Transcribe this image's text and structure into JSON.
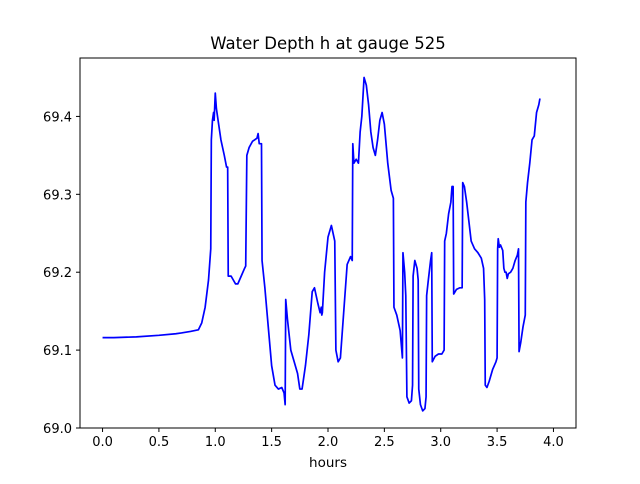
{
  "chart_data": {
    "type": "line",
    "title": "Water Depth h at gauge 525",
    "xlabel": "hours",
    "ylabel": "",
    "xlim": [
      -0.2,
      4.2
    ],
    "ylim": [
      69.0,
      69.475
    ],
    "xticks": [
      0.0,
      0.5,
      1.0,
      1.5,
      2.0,
      2.5,
      3.0,
      3.5,
      4.0
    ],
    "xtick_labels": [
      "0.0",
      "0.5",
      "1.0",
      "1.5",
      "2.0",
      "2.5",
      "3.0",
      "3.5",
      "4.0"
    ],
    "yticks": [
      69.0,
      69.1,
      69.2,
      69.3,
      69.4
    ],
    "ytick_labels": [
      "69.0",
      "69.1",
      "69.2",
      "69.3",
      "69.4"
    ],
    "grid": false,
    "colors": {
      "line": "#0000ff",
      "axes": "#000000",
      "background": "#ffffff"
    },
    "series": [
      {
        "name": "",
        "points": [
          [
            0.0,
            69.116
          ],
          [
            0.1,
            69.116
          ],
          [
            0.3,
            69.117
          ],
          [
            0.5,
            69.119
          ],
          [
            0.65,
            69.121
          ],
          [
            0.7,
            69.122
          ],
          [
            0.78,
            69.124
          ],
          [
            0.85,
            69.126
          ],
          [
            0.88,
            69.135
          ],
          [
            0.91,
            69.155
          ],
          [
            0.94,
            69.19
          ],
          [
            0.96,
            69.23
          ],
          [
            0.965,
            69.37
          ],
          [
            0.975,
            69.395
          ],
          [
            0.985,
            69.405
          ],
          [
            0.99,
            69.395
          ],
          [
            1.0,
            69.43
          ],
          [
            1.01,
            69.41
          ],
          [
            1.03,
            69.39
          ],
          [
            1.05,
            69.37
          ],
          [
            1.08,
            69.35
          ],
          [
            1.1,
            69.335
          ],
          [
            1.11,
            69.335
          ],
          [
            1.115,
            69.195
          ],
          [
            1.14,
            69.195
          ],
          [
            1.16,
            69.19
          ],
          [
            1.18,
            69.185
          ],
          [
            1.2,
            69.185
          ],
          [
            1.23,
            69.195
          ],
          [
            1.26,
            69.205
          ],
          [
            1.27,
            69.208
          ],
          [
            1.28,
            69.35
          ],
          [
            1.3,
            69.36
          ],
          [
            1.33,
            69.368
          ],
          [
            1.37,
            69.372
          ],
          [
            1.38,
            69.378
          ],
          [
            1.39,
            69.365
          ],
          [
            1.41,
            69.365
          ],
          [
            1.415,
            69.215
          ],
          [
            1.44,
            69.18
          ],
          [
            1.47,
            69.13
          ],
          [
            1.5,
            69.08
          ],
          [
            1.53,
            69.055
          ],
          [
            1.56,
            69.05
          ],
          [
            1.59,
            69.052
          ],
          [
            1.61,
            69.045
          ],
          [
            1.62,
            69.03
          ],
          [
            1.625,
            69.165
          ],
          [
            1.64,
            69.14
          ],
          [
            1.67,
            69.1
          ],
          [
            1.7,
            69.085
          ],
          [
            1.73,
            69.07
          ],
          [
            1.75,
            69.05
          ],
          [
            1.77,
            69.05
          ],
          [
            1.8,
            69.08
          ],
          [
            1.83,
            69.12
          ],
          [
            1.86,
            69.175
          ],
          [
            1.88,
            69.18
          ],
          [
            1.91,
            69.16
          ],
          [
            1.93,
            69.148
          ],
          [
            1.94,
            69.155
          ],
          [
            1.945,
            69.145
          ],
          [
            1.95,
            69.148
          ],
          [
            1.97,
            69.2
          ],
          [
            2.0,
            69.245
          ],
          [
            2.03,
            69.26
          ],
          [
            2.06,
            69.24
          ],
          [
            2.07,
            69.1
          ],
          [
            2.09,
            69.085
          ],
          [
            2.11,
            69.09
          ],
          [
            2.14,
            69.15
          ],
          [
            2.17,
            69.21
          ],
          [
            2.2,
            69.22
          ],
          [
            2.215,
            69.215
          ],
          [
            2.22,
            69.365
          ],
          [
            2.23,
            69.34
          ],
          [
            2.25,
            69.345
          ],
          [
            2.27,
            69.34
          ],
          [
            2.285,
            69.38
          ],
          [
            2.3,
            69.4
          ],
          [
            2.32,
            69.45
          ],
          [
            2.34,
            69.44
          ],
          [
            2.36,
            69.415
          ],
          [
            2.38,
            69.38
          ],
          [
            2.4,
            69.36
          ],
          [
            2.42,
            69.35
          ],
          [
            2.44,
            69.37
          ],
          [
            2.46,
            69.395
          ],
          [
            2.48,
            69.405
          ],
          [
            2.5,
            69.39
          ],
          [
            2.53,
            69.34
          ],
          [
            2.56,
            69.305
          ],
          [
            2.58,
            69.295
          ],
          [
            2.585,
            69.155
          ],
          [
            2.61,
            69.145
          ],
          [
            2.64,
            69.125
          ],
          [
            2.66,
            69.09
          ],
          [
            2.665,
            69.225
          ],
          [
            2.68,
            69.2
          ],
          [
            2.69,
            69.17
          ],
          [
            2.7,
            69.04
          ],
          [
            2.72,
            69.032
          ],
          [
            2.74,
            69.035
          ],
          [
            2.75,
            69.055
          ],
          [
            2.755,
            69.195
          ],
          [
            2.77,
            69.215
          ],
          [
            2.79,
            69.205
          ],
          [
            2.8,
            69.19
          ],
          [
            2.805,
            69.05
          ],
          [
            2.82,
            69.03
          ],
          [
            2.84,
            69.022
          ],
          [
            2.86,
            69.025
          ],
          [
            2.87,
            69.04
          ],
          [
            2.875,
            69.17
          ],
          [
            2.89,
            69.19
          ],
          [
            2.91,
            69.215
          ],
          [
            2.92,
            69.225
          ],
          [
            2.925,
            69.085
          ],
          [
            2.95,
            69.092
          ],
          [
            2.98,
            69.095
          ],
          [
            3.01,
            69.095
          ],
          [
            3.03,
            69.1
          ],
          [
            3.035,
            69.24
          ],
          [
            3.05,
            69.25
          ],
          [
            3.07,
            69.275
          ],
          [
            3.09,
            69.29
          ],
          [
            3.1,
            69.31
          ],
          [
            3.11,
            69.31
          ],
          [
            3.115,
            69.172
          ],
          [
            3.14,
            69.178
          ],
          [
            3.17,
            69.18
          ],
          [
            3.19,
            69.18
          ],
          [
            3.195,
            69.315
          ],
          [
            3.21,
            69.31
          ],
          [
            3.23,
            69.29
          ],
          [
            3.25,
            69.265
          ],
          [
            3.27,
            69.24
          ],
          [
            3.3,
            69.23
          ],
          [
            3.33,
            69.225
          ],
          [
            3.36,
            69.218
          ],
          [
            3.38,
            69.205
          ],
          [
            3.39,
            69.165
          ],
          [
            3.395,
            69.055
          ],
          [
            3.41,
            69.052
          ],
          [
            3.43,
            69.06
          ],
          [
            3.46,
            69.075
          ],
          [
            3.49,
            69.085
          ],
          [
            3.5,
            69.09
          ],
          [
            3.505,
            69.23
          ],
          [
            3.51,
            69.243
          ],
          [
            3.52,
            69.232
          ],
          [
            3.53,
            69.235
          ],
          [
            3.55,
            69.228
          ],
          [
            3.56,
            69.205
          ],
          [
            3.57,
            69.2
          ],
          [
            3.58,
            69.2
          ],
          [
            3.59,
            69.192
          ],
          [
            3.6,
            69.198
          ],
          [
            3.62,
            69.2
          ],
          [
            3.64,
            69.205
          ],
          [
            3.66,
            69.215
          ],
          [
            3.68,
            69.222
          ],
          [
            3.69,
            69.23
          ],
          [
            3.695,
            69.098
          ],
          [
            3.71,
            69.11
          ],
          [
            3.73,
            69.13
          ],
          [
            3.75,
            69.145
          ],
          [
            3.755,
            69.29
          ],
          [
            3.77,
            69.315
          ],
          [
            3.79,
            69.34
          ],
          [
            3.81,
            69.37
          ],
          [
            3.83,
            69.375
          ],
          [
            3.85,
            69.405
          ],
          [
            3.87,
            69.415
          ],
          [
            3.88,
            69.423
          ]
        ]
      }
    ]
  }
}
